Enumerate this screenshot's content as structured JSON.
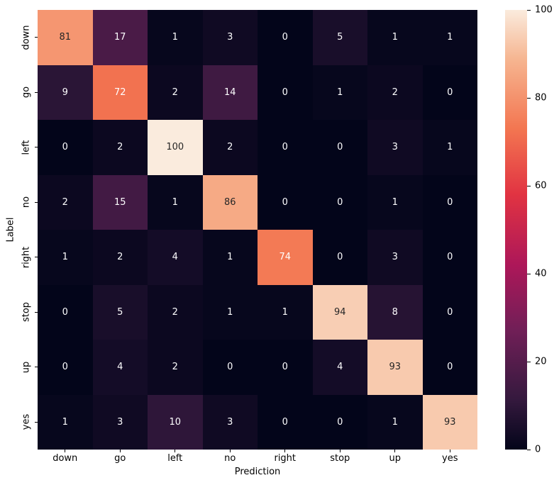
{
  "chart_data": {
    "type": "heatmap",
    "title": "",
    "xlabel": "Prediction",
    "ylabel": "Label",
    "x_categories": [
      "down",
      "go",
      "left",
      "no",
      "right",
      "stop",
      "up",
      "yes"
    ],
    "y_categories": [
      "down",
      "go",
      "left",
      "no",
      "right",
      "stop",
      "up",
      "yes"
    ],
    "matrix": [
      [
        81,
        17,
        1,
        3,
        0,
        5,
        1,
        1
      ],
      [
        9,
        72,
        2,
        14,
        0,
        1,
        2,
        0
      ],
      [
        0,
        2,
        100,
        2,
        0,
        0,
        3,
        1
      ],
      [
        2,
        15,
        1,
        86,
        0,
        0,
        1,
        0
      ],
      [
        1,
        2,
        4,
        1,
        74,
        0,
        3,
        0
      ],
      [
        0,
        5,
        2,
        1,
        1,
        94,
        8,
        0
      ],
      [
        0,
        4,
        2,
        0,
        0,
        4,
        93,
        0
      ],
      [
        1,
        3,
        10,
        3,
        0,
        0,
        1,
        93
      ]
    ],
    "vmin": 0,
    "vmax": 100,
    "colorbar_ticks": [
      0,
      20,
      40,
      60,
      80,
      100
    ],
    "colormap": "rocket",
    "legend_position": "right",
    "grid": false
  },
  "colors": {
    "background": "#ffffff",
    "axis_text": "#000000",
    "annotation_dark": "#262626",
    "annotation_light": "#fefeff",
    "rocket_stops": [
      [
        0.0,
        "#03051A"
      ],
      [
        0.115,
        "#35193E"
      ],
      [
        0.27,
        "#701F57"
      ],
      [
        0.42,
        "#AD1759"
      ],
      [
        0.58,
        "#E13342"
      ],
      [
        0.73,
        "#F37651"
      ],
      [
        0.885,
        "#F6B48F"
      ],
      [
        1.0,
        "#FAEBDD"
      ]
    ]
  }
}
